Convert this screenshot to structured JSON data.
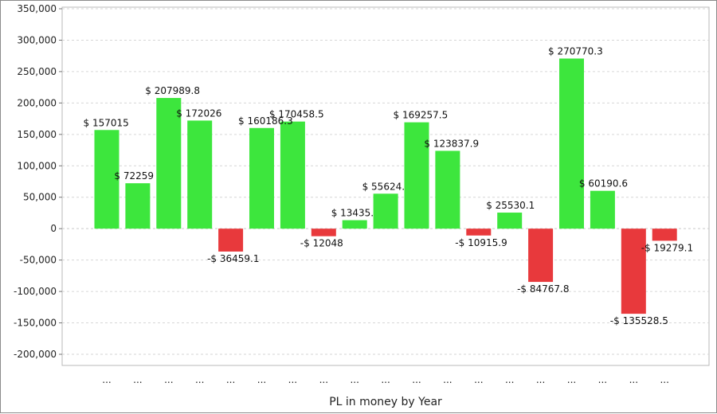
{
  "chart_data": {
    "type": "bar",
    "title": "",
    "xlabel": "PL in money by Year",
    "ylabel": "",
    "ylim": [
      -200000,
      350000
    ],
    "yticks": [
      350000,
      300000,
      250000,
      200000,
      150000,
      100000,
      50000,
      0,
      -50000,
      -100000,
      -150000,
      -200000
    ],
    "ytick_labels": [
      "350,000",
      "300,000",
      "250,000",
      "200,000",
      "150,000",
      "100,000",
      "50,000",
      "0",
      "-50,000",
      "-100,000",
      "-150,000",
      "-200,000"
    ],
    "grid": true,
    "categories": [
      "...",
      "...",
      "...",
      "...",
      "...",
      "...",
      "...",
      "...",
      "...",
      "...",
      "...",
      "...",
      "...",
      "...",
      "...",
      "...",
      "...",
      "...",
      "..."
    ],
    "values": [
      157015,
      72259,
      207989.8,
      172026,
      -36459.1,
      160186.3,
      170458.5,
      -12048,
      13435,
      55624,
      169257.5,
      123837.9,
      -10915.9,
      25530.1,
      -84767.8,
      270770.3,
      60190.6,
      -135528.5,
      -19279.1
    ],
    "data_labels": [
      "$ 157015",
      "$ 72259",
      "$ 207989.8",
      "$ 172026",
      "-$ 36459.1",
      "$ 160186.3",
      "$ 170458.5",
      "-$ 12048",
      "$ 13435.",
      "$ 55624.",
      "$ 169257.5",
      "$ 123837.9",
      "-$ 10915.9",
      "$ 25530.1",
      "-$ 84767.8",
      "$ 270770.3",
      "$ 60190.6",
      "-$ 135528.5",
      "-$ 19279.1"
    ],
    "colors": {
      "positive": "#3de63d",
      "negative": "#e8393c"
    }
  }
}
